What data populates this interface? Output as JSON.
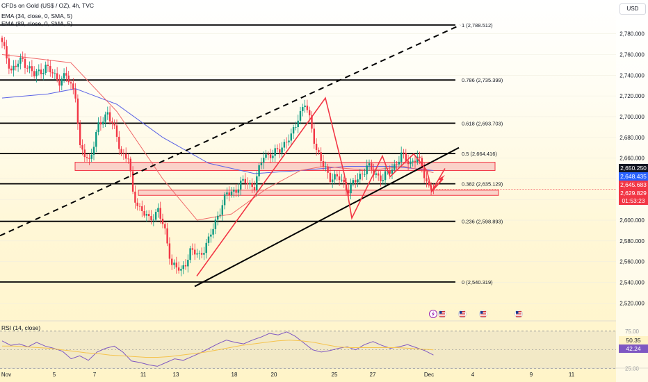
{
  "header": {
    "title": "CFDs on Gold (US$ / OZ), 4h, TVC",
    "indicators": [
      "EMA (34, close, 0, SMA, 5)",
      "EMA (89, close, 0, SMA, 5)"
    ],
    "rsi_label": "RSI (14, close)",
    "currency_button": "USD"
  },
  "colors": {
    "up": "#089981",
    "down": "#f23645",
    "ema34": "#f06a6a",
    "ema89": "#5b63e6",
    "zone_fill": "#f8c4c0",
    "zone_stroke": "#f23645",
    "fib_line": "#000000",
    "rsi_line": "#7e57c2",
    "rsi_ma": "#f5c34d"
  },
  "price_labels": [
    {
      "text": "2,650.250",
      "bg": "#131722"
    },
    {
      "text": "2,648.435",
      "bg": "#2962ff"
    },
    {
      "text": "2,645.683",
      "bg": "#f23645"
    },
    {
      "text": "2,629.829",
      "bg": "#f23645"
    },
    {
      "text": "01:53:23",
      "bg": "#f23645"
    }
  ],
  "rsi_labels": [
    {
      "text": "50.35",
      "bg": "#fff3c4",
      "fg": "#131722"
    },
    {
      "text": "42.24",
      "bg": "#7e57c2",
      "fg": "#ffffff"
    }
  ],
  "event_icons": [
    "lightning-icon",
    "us-flag-icon",
    "us-flag-icon",
    "us-flag-icon",
    "us-flag-icon"
  ],
  "chart_data": {
    "type": "candlestick",
    "title": "CFDs on Gold (US$ / OZ), 4h, TVC",
    "ylim": [
      2510,
      2800
    ],
    "y_ticks": [
      2520,
      2540,
      2560,
      2580,
      2600,
      2620,
      2640,
      2660,
      2680,
      2700,
      2720,
      2740,
      2760,
      2780
    ],
    "y_tick_labels": [
      "2,520.000",
      "2,540.000",
      "2,560.000",
      "2,580.000",
      "2,600.000",
      "2,620.000",
      "2,640.000",
      "2,660.000",
      "2,680.000",
      "2,700.000",
      "2,720.000",
      "2,740.000",
      "2,760.000",
      "2,780.000"
    ],
    "x_ticks": [
      "Nov",
      "5",
      "7",
      "11",
      "13",
      "18",
      "20",
      "25",
      "27",
      "Dec",
      "4",
      "9",
      "11"
    ],
    "fib_levels": [
      {
        "ratio": "1",
        "price": 2788.512,
        "label": "1 (2,788.512)"
      },
      {
        "ratio": "0.786",
        "price": 2735.399,
        "label": "0.786 (2,735.399)"
      },
      {
        "ratio": "0.618",
        "price": 2693.703,
        "label": "0.618 (2,693.703)"
      },
      {
        "ratio": "0.5",
        "price": 2664.416,
        "label": "0.5 (2,664.416)"
      },
      {
        "ratio": "0.382",
        "price": 2635.129,
        "label": "0.382 (2,635.129)"
      },
      {
        "ratio": "0.236",
        "price": 2598.893,
        "label": "0.236 (2,598.893)"
      },
      {
        "ratio": "0",
        "price": 2540.319,
        "label": "0 (2,540.319)"
      }
    ],
    "zones": [
      {
        "from": 2648,
        "to": 2656
      },
      {
        "from": 2624,
        "to": 2629
      }
    ],
    "close_path": [
      [
        0,
        2770
      ],
      [
        4,
        2745
      ],
      [
        9,
        2755
      ],
      [
        14,
        2740
      ],
      [
        19,
        2748
      ],
      [
        25,
        2735
      ],
      [
        28,
        2739
      ],
      [
        32,
        2722
      ],
      [
        34,
        2668
      ],
      [
        38,
        2658
      ],
      [
        42,
        2690
      ],
      [
        46,
        2705
      ],
      [
        50,
        2680
      ],
      [
        52,
        2665
      ],
      [
        55,
        2660
      ],
      [
        57,
        2625
      ],
      [
        60,
        2612
      ],
      [
        64,
        2600
      ],
      [
        68,
        2610
      ],
      [
        71,
        2588
      ],
      [
        74,
        2558
      ],
      [
        78,
        2550
      ],
      [
        82,
        2570
      ],
      [
        86,
        2566
      ],
      [
        90,
        2580
      ],
      [
        94,
        2605
      ],
      [
        98,
        2625
      ],
      [
        102,
        2630
      ],
      [
        106,
        2638
      ],
      [
        110,
        2632
      ],
      [
        114,
        2664
      ],
      [
        118,
        2662
      ],
      [
        122,
        2672
      ],
      [
        126,
        2680
      ],
      [
        129,
        2700
      ],
      [
        132,
        2712
      ],
      [
        135,
        2690
      ],
      [
        137,
        2668
      ],
      [
        140,
        2652
      ],
      [
        143,
        2642
      ],
      [
        147,
        2640
      ],
      [
        151,
        2630
      ],
      [
        155,
        2640
      ],
      [
        159,
        2652
      ],
      [
        162,
        2646
      ],
      [
        166,
        2640
      ],
      [
        170,
        2650
      ],
      [
        174,
        2662
      ],
      [
        178,
        2656
      ],
      [
        181,
        2660
      ],
      [
        184,
        2645
      ],
      [
        186,
        2632
      ],
      [
        188,
        2630
      ]
    ],
    "ema34": [
      [
        0,
        2760
      ],
      [
        30,
        2752
      ],
      [
        50,
        2705
      ],
      [
        70,
        2640
      ],
      [
        85,
        2600
      ],
      [
        100,
        2606
      ],
      [
        115,
        2630
      ],
      [
        130,
        2648
      ],
      [
        140,
        2652
      ],
      [
        160,
        2648
      ],
      [
        175,
        2652
      ],
      [
        188,
        2646
      ]
    ],
    "ema89": [
      [
        0,
        2718
      ],
      [
        20,
        2722
      ],
      [
        32,
        2727
      ],
      [
        50,
        2712
      ],
      [
        70,
        2680
      ],
      [
        90,
        2655
      ],
      [
        110,
        2645
      ],
      [
        130,
        2648
      ],
      [
        150,
        2652
      ],
      [
        170,
        2652
      ],
      [
        188,
        2648
      ]
    ],
    "rsi": {
      "ylim": [
        20,
        85
      ],
      "levels": [
        75,
        50.35,
        42.24,
        25
      ],
      "tick_labels": [
        "75.00",
        "25.00"
      ],
      "values": [
        62,
        56,
        58,
        54,
        60,
        55,
        52,
        48,
        38,
        42,
        36,
        47,
        52,
        55,
        47,
        35,
        33,
        30,
        28,
        33,
        38,
        36,
        41,
        46,
        52,
        58,
        63,
        60,
        58,
        63,
        67,
        72,
        70,
        74,
        68,
        59,
        50,
        47,
        49,
        52,
        54,
        50,
        57,
        61,
        56,
        52,
        54,
        57,
        53,
        49,
        43
      ],
      "ma": [
        55,
        55,
        54,
        53,
        52,
        50,
        48,
        46,
        45,
        43,
        42,
        41,
        40,
        40,
        41,
        43,
        45,
        47,
        50,
        53,
        56,
        58,
        60,
        62,
        63,
        62,
        60,
        57,
        54,
        53,
        53,
        53,
        53,
        53,
        52,
        51,
        50
      ]
    }
  }
}
